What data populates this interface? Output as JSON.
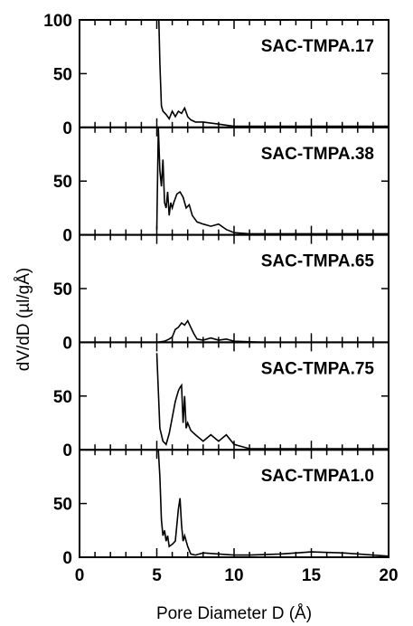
{
  "chart_data": {
    "type": "line",
    "xlabel": "Pore Diameter D (Å)",
    "ylabel": "dV/dD (µl/gÅ)",
    "xlim": [
      0,
      20
    ],
    "ylim": [
      0,
      100
    ],
    "x_ticks": [
      "0",
      "5",
      "10",
      "15",
      "20"
    ],
    "y_ticks": [
      "0",
      "50",
      "100"
    ],
    "grid": false,
    "panels": [
      {
        "label": "SAC-TMPA.17",
        "x": [
          5.1,
          5.2,
          5.3,
          5.4,
          5.6,
          5.8,
          6.0,
          6.2,
          6.4,
          6.6,
          6.8,
          7.0,
          7.2,
          7.5,
          8,
          9,
          10,
          11,
          13,
          15,
          17,
          20
        ],
        "y": [
          120,
          60,
          20,
          15,
          12,
          8,
          15,
          10,
          15,
          13,
          18,
          10,
          7,
          5,
          5,
          3,
          1,
          1,
          1,
          1,
          1,
          1
        ]
      },
      {
        "label": "SAC-TMPA.38",
        "x": [
          5.0,
          5.1,
          5.2,
          5.3,
          5.4,
          5.5,
          5.6,
          5.7,
          5.8,
          5.9,
          6.0,
          6.1,
          6.3,
          6.5,
          6.7,
          6.9,
          7.1,
          7.3,
          7.6,
          8,
          8.5,
          9,
          9.5,
          10,
          11,
          13,
          15,
          17,
          20
        ],
        "y": [
          5,
          100,
          60,
          45,
          70,
          30,
          25,
          40,
          18,
          30,
          25,
          30,
          38,
          40,
          35,
          25,
          28,
          18,
          12,
          10,
          8,
          10,
          5,
          2,
          1,
          1,
          1,
          1,
          1
        ]
      },
      {
        "label": "SAC-TMPA.65",
        "x": [
          0,
          5,
          5.5,
          5.8,
          6,
          6.2,
          6.4,
          6.6,
          6.8,
          7.0,
          7.2,
          7.4,
          7.6,
          8,
          8.5,
          9,
          9.5,
          10,
          12,
          15,
          20
        ],
        "y": [
          0,
          0,
          1,
          3,
          5,
          12,
          14,
          18,
          16,
          20,
          14,
          8,
          3,
          2,
          4,
          2,
          3,
          1,
          0,
          0,
          0
        ]
      },
      {
        "label": "SAC-TMPA.75",
        "x": [
          5.0,
          5.2,
          5.4,
          5.6,
          5.8,
          6.0,
          6.2,
          6.4,
          6.5,
          6.6,
          6.7,
          6.8,
          6.9,
          7.0,
          7.2,
          7.5,
          8,
          8.5,
          9,
          9.5,
          10,
          11,
          13,
          15,
          17,
          20
        ],
        "y": [
          90,
          20,
          8,
          5,
          15,
          30,
          45,
          55,
          58,
          60,
          25,
          50,
          20,
          25,
          18,
          14,
          8,
          14,
          8,
          14,
          5,
          1,
          1,
          1,
          1,
          1
        ]
      },
      {
        "label": "SAC-TMPA1.0",
        "x": [
          5.1,
          5.2,
          5.3,
          5.4,
          5.5,
          5.6,
          5.7,
          5.8,
          6.0,
          6.2,
          6.4,
          6.5,
          6.6,
          6.7,
          6.8,
          7.0,
          7.2,
          7.5,
          8,
          9,
          10,
          11,
          13,
          15,
          17,
          20
        ],
        "y": [
          100,
          75,
          35,
          20,
          25,
          15,
          20,
          10,
          12,
          15,
          45,
          55,
          30,
          15,
          20,
          10,
          3,
          2,
          4,
          3,
          2,
          2,
          3,
          5,
          4,
          1
        ]
      }
    ]
  }
}
